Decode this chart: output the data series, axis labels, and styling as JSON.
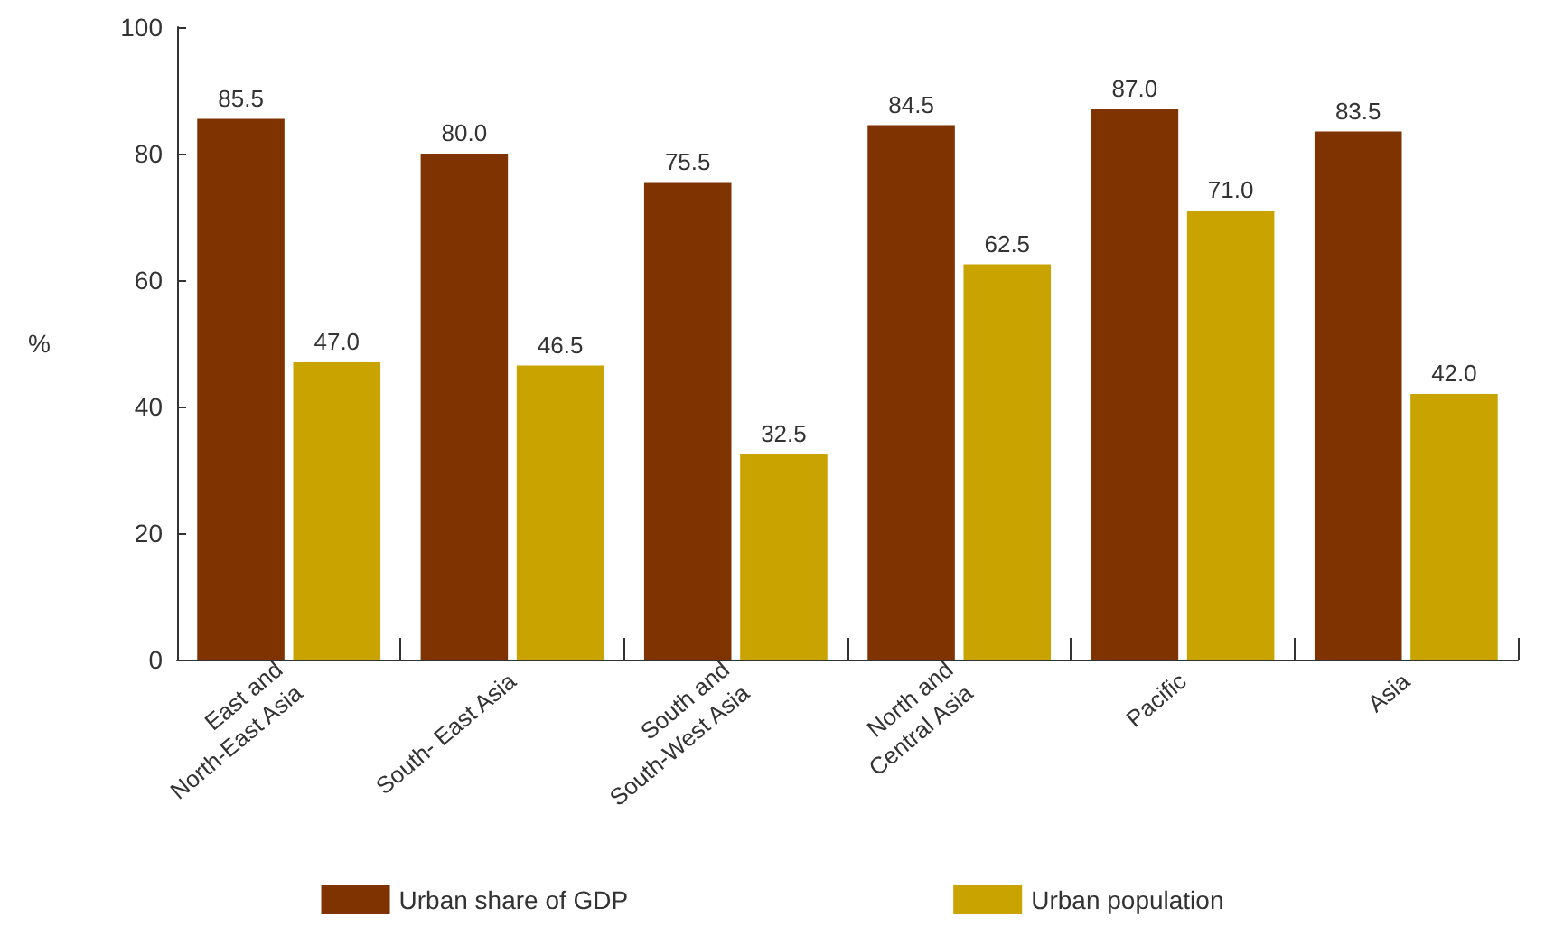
{
  "chart_data": {
    "type": "bar",
    "ylabel": "%",
    "categories": [
      "East and\nNorth-East Asia",
      "South- East Asia",
      "South and\nSouth-West Asia",
      "North and\nCentral Asia",
      "Pacific",
      "Asia"
    ],
    "series": [
      {
        "name": "Urban share of GDP",
        "color": "#7f3300",
        "values": [
          85.5,
          80,
          75.5,
          84.5,
          87,
          83.5
        ],
        "value_labels": [
          "85.5",
          "80.0",
          "75.5",
          "84.5",
          "87.0",
          "83.5"
        ]
      },
      {
        "name": "Urban population",
        "color": "#c9a400",
        "values": [
          47,
          46.5,
          32.5,
          62.5,
          71,
          42
        ],
        "value_labels": [
          "47.0",
          "46.5",
          "32.5",
          "62.5",
          "71.0",
          "42.0"
        ]
      }
    ],
    "ylim": [
      0,
      100
    ],
    "yticks": [
      0,
      20,
      40,
      60,
      80,
      100
    ],
    "grid": false,
    "legend": "bottom"
  }
}
